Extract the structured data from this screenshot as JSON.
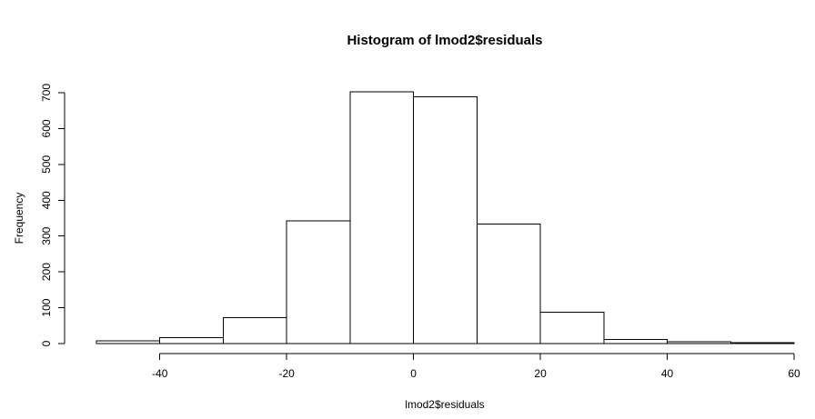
{
  "chart_data": {
    "type": "bar",
    "title": "Histogram of lmod2$residuals",
    "xlabel": "lmod2$residuals",
    "ylabel": "Frequency",
    "bins": [
      {
        "from": -50,
        "to": -40,
        "count": 7
      },
      {
        "from": -40,
        "to": -30,
        "count": 17
      },
      {
        "from": -30,
        "to": -20,
        "count": 72
      },
      {
        "from": -20,
        "to": -10,
        "count": 343
      },
      {
        "from": -10,
        "to": 0,
        "count": 703
      },
      {
        "from": 0,
        "to": 10,
        "count": 689
      },
      {
        "from": 10,
        "to": 20,
        "count": 333
      },
      {
        "from": 20,
        "to": 30,
        "count": 88
      },
      {
        "from": 30,
        "to": 40,
        "count": 12
      },
      {
        "from": 40,
        "to": 50,
        "count": 5
      },
      {
        "from": 50,
        "to": 60,
        "count": 2
      }
    ],
    "xticks": [
      -40,
      -20,
      0,
      20,
      40,
      60
    ],
    "yticks": [
      0,
      100,
      200,
      300,
      400,
      500,
      600,
      700
    ],
    "xlim": [
      -50,
      60
    ],
    "ylim": [
      0,
      700
    ],
    "grid": false,
    "bar_fill": "#ffffff",
    "bar_stroke": "#000000"
  }
}
